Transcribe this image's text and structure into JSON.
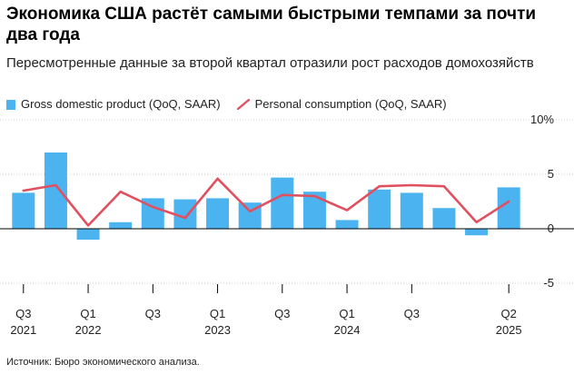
{
  "title": "Экономика США растёт самыми быстрыми темпами за почти два года",
  "subtitle": "Пересмотренные данные за второй квартал отразили рост расходов домохозяйств",
  "legend": {
    "gdp": "Gross domestic product (QoQ, SAAR)",
    "consumption": "Personal consumption (QoQ, SAAR)"
  },
  "source": "Источник: Бюро экономического анализа.",
  "colors": {
    "bar": "#4bb4f0",
    "line": "#e0505f",
    "grid": "#cccccc",
    "zero": "#000000"
  },
  "chart_data": {
    "type": "bar",
    "title": "",
    "categories": [
      "Q3 2021",
      "Q4 2021",
      "Q1 2022",
      "Q2 2022",
      "Q3 2022",
      "Q4 2022",
      "Q1 2023",
      "Q2 2023",
      "Q3 2023",
      "Q4 2023",
      "Q1 2024",
      "Q2 2024",
      "Q3 2024",
      "Q4 2024",
      "Q1 2025",
      "Q2 2025"
    ],
    "series": [
      {
        "name": "Gross domestic product (QoQ, SAAR)",
        "type": "bar",
        "values": [
          3.3,
          7.0,
          -1.0,
          0.6,
          2.8,
          2.7,
          2.8,
          2.4,
          4.7,
          3.4,
          0.8,
          3.6,
          3.3,
          1.9,
          -0.6,
          3.8
        ]
      },
      {
        "name": "Personal consumption (QoQ, SAAR)",
        "type": "line",
        "values": [
          3.5,
          4.0,
          0.3,
          3.4,
          2.0,
          1.0,
          4.6,
          1.6,
          3.1,
          3.0,
          1.7,
          3.9,
          4.0,
          3.9,
          0.6,
          2.5
        ]
      }
    ],
    "ylim": [
      -5,
      10
    ],
    "yticks": [
      "10%",
      "5",
      "0",
      "-5"
    ],
    "ytick_values": [
      10,
      5,
      0,
      -5
    ],
    "xticks": [
      {
        "q": "Q3",
        "year": "2021",
        "index": 0
      },
      {
        "q": "Q1",
        "year": "2022",
        "index": 2
      },
      {
        "q": "Q3",
        "year": "",
        "index": 4
      },
      {
        "q": "Q1",
        "year": "2023",
        "index": 6
      },
      {
        "q": "Q3",
        "year": "",
        "index": 8
      },
      {
        "q": "Q1",
        "year": "2024",
        "index": 10
      },
      {
        "q": "Q3",
        "year": "",
        "index": 12
      },
      {
        "q": "Q2",
        "year": "2025",
        "index": 15
      }
    ],
    "grid": true
  }
}
